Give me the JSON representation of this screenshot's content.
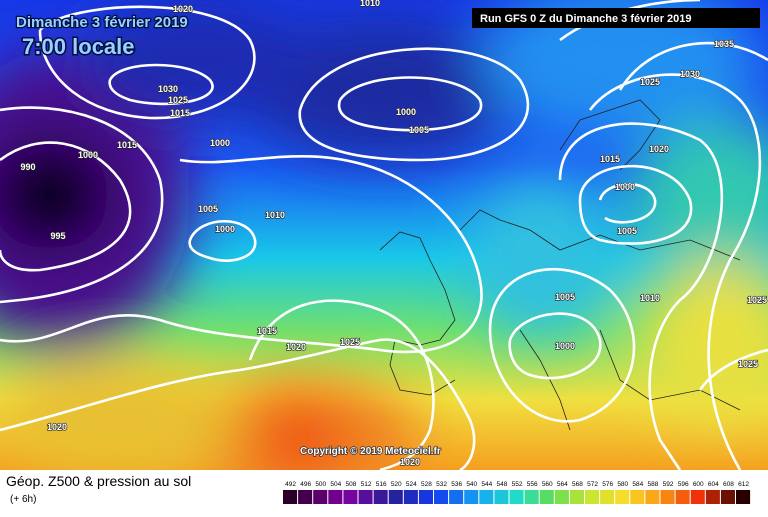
{
  "header": {
    "date": "Dimanche 3 février 2019",
    "time": "7:00 locale",
    "run": "Run GFS 0 Z du Dimanche 3 février 2019"
  },
  "isobar_labels": [
    "1020",
    "1010",
    "1030",
    "1025",
    "1015",
    "1015",
    "1000",
    "990",
    "995",
    "1000",
    "1000",
    "1005",
    "1005",
    "1010",
    "1000",
    "1035",
    "1025",
    "1030",
    "1020",
    "1015",
    "1000",
    "1005",
    "1005",
    "1010",
    "1025",
    "1000",
    "1015",
    "1020",
    "1025",
    "1025",
    "1020",
    "1020"
  ],
  "copyright": "Copyright © 2019 Meteociel.fr",
  "footer": {
    "title": "Géop. Z500 & pression au sol",
    "subtitle": "(+ 6h)"
  },
  "legend": {
    "values": [
      492,
      496,
      500,
      504,
      508,
      512,
      516,
      520,
      524,
      528,
      532,
      536,
      540,
      544,
      548,
      552,
      556,
      560,
      564,
      568,
      572,
      576,
      580,
      584,
      588,
      592,
      596,
      600,
      604,
      608,
      612
    ]
  }
}
